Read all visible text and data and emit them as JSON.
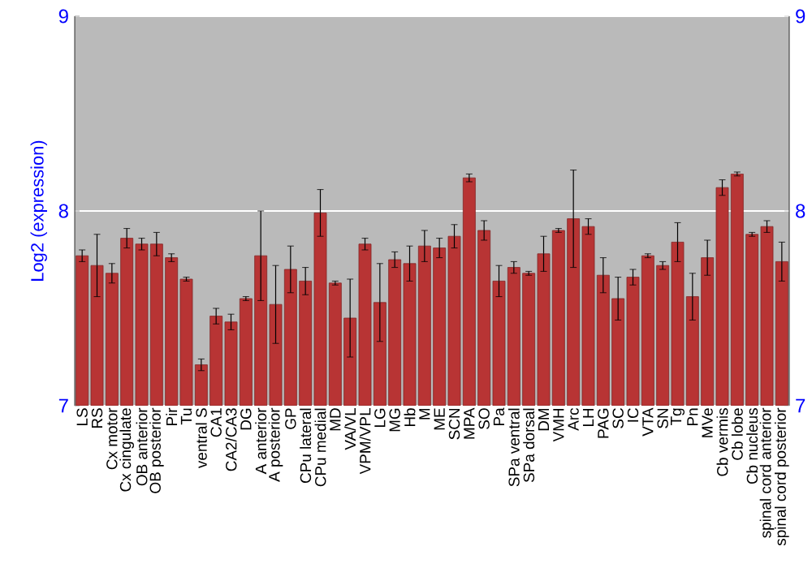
{
  "chart_data": {
    "type": "bar",
    "ylabel": "Log2 (expression)",
    "categories": [
      "LS",
      "RS",
      "Cx motor",
      "Cx cingulate",
      "OB anterior",
      "OB posterior",
      "Pir",
      "Tu",
      "ventral S",
      "CA1",
      "CA2/CA3",
      "DG",
      "A anterior",
      "A posterior",
      "GP",
      "CPu lateral",
      "CPu medial",
      "MD",
      "VA/VL",
      "VPM/VPL",
      "LG",
      "MG",
      "Hb",
      "M",
      "ME",
      "SCN",
      "MPA",
      "SO",
      "Pa",
      "SPa ventral",
      "SPa dorsal",
      "DM",
      "VMH",
      "Arc",
      "LH",
      "PAG",
      "SC",
      "IC",
      "VTA",
      "SN",
      "Tg",
      "Pn",
      "MVe",
      "Cb vermis",
      "Cb lobe",
      "Cb nucleus",
      "spinal cord anterior",
      "spinal cord posterior"
    ],
    "values": [
      7.77,
      7.72,
      7.68,
      7.86,
      7.83,
      7.83,
      7.76,
      7.65,
      7.21,
      7.46,
      7.43,
      7.55,
      7.77,
      7.52,
      7.7,
      7.64,
      7.99,
      7.63,
      7.45,
      7.83,
      7.53,
      7.75,
      7.73,
      7.82,
      7.81,
      7.87,
      8.17,
      7.9,
      7.64,
      7.71,
      7.68,
      7.78,
      7.9,
      7.96,
      7.92,
      7.67,
      7.55,
      7.66,
      7.77,
      7.72,
      7.84,
      7.56,
      7.76,
      8.12,
      8.19,
      7.88,
      7.92,
      7.74
    ],
    "errors": [
      0.03,
      0.16,
      0.05,
      0.05,
      0.03,
      0.06,
      0.02,
      0.01,
      0.03,
      0.04,
      0.04,
      0.01,
      0.23,
      0.2,
      0.12,
      0.07,
      0.12,
      0.01,
      0.2,
      0.03,
      0.2,
      0.04,
      0.09,
      0.08,
      0.05,
      0.06,
      0.02,
      0.05,
      0.08,
      0.03,
      0.01,
      0.09,
      0.01,
      0.25,
      0.04,
      0.09,
      0.11,
      0.04,
      0.01,
      0.02,
      0.1,
      0.12,
      0.09,
      0.04,
      0.01,
      0.01,
      0.03,
      0.1
    ],
    "color": "#b83434",
    "ylim": [
      7,
      9
    ],
    "yticks": [
      7,
      8,
      9
    ],
    "y2lim": [
      7,
      9
    ],
    "y2ticks": [
      7,
      8,
      9
    ],
    "grid": "y"
  }
}
